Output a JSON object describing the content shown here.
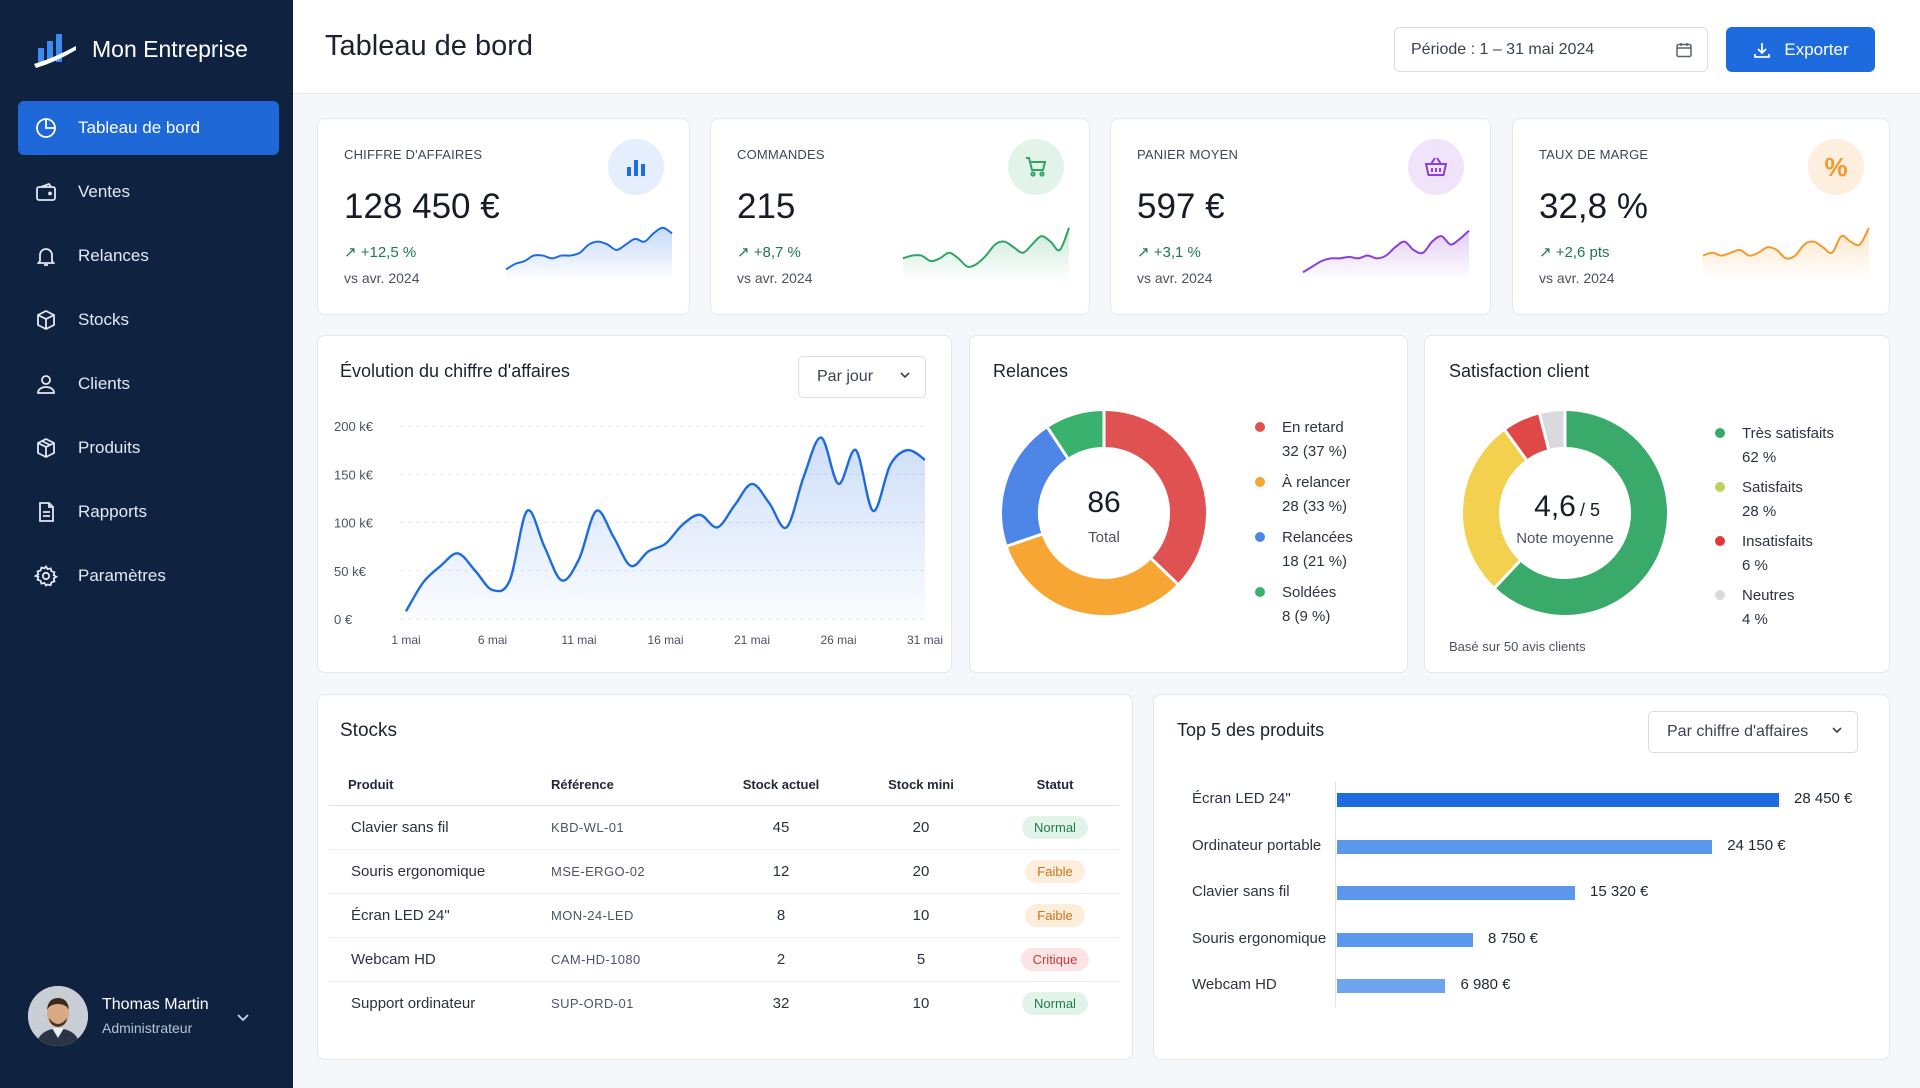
{
  "brand": {
    "name": "Mon Entreprise"
  },
  "nav": [
    {
      "label": "Tableau de bord",
      "icon": "pie-chart-icon",
      "active": true
    },
    {
      "label": "Ventes",
      "icon": "wallet-icon"
    },
    {
      "label": "Relances",
      "icon": "bell-icon"
    },
    {
      "label": "Stocks",
      "icon": "box-icon"
    },
    {
      "label": "Clients",
      "icon": "user-icon"
    },
    {
      "label": "Produits",
      "icon": "package-icon"
    },
    {
      "label": "Rapports",
      "icon": "document-icon"
    },
    {
      "label": "Paramètres",
      "icon": "gear-icon"
    }
  ],
  "user": {
    "name": "Thomas Martin",
    "role": "Administrateur"
  },
  "header": {
    "title": "Tableau de bord",
    "period": "Période : 1 – 31 mai 2024",
    "export_label": "Exporter"
  },
  "kpis": [
    {
      "label": "CHIFFRE D'AFFAIRES",
      "value": "128 450 €",
      "delta": "↗ +12,5 %",
      "vs": "vs avr. 2024",
      "icon": "bar-chart-icon",
      "color": "#1e6be0",
      "bg": "#e4eefc",
      "spark": [
        4,
        8,
        10,
        14,
        14,
        12,
        14,
        14,
        16,
        22,
        24,
        22,
        18,
        22,
        26,
        24,
        30,
        34,
        30
      ]
    },
    {
      "label": "COMMANDES",
      "value": "215",
      "delta": "↗ +8,7 %",
      "vs": "vs avr. 2024",
      "icon": "cart-icon",
      "color": "#2ea565",
      "bg": "#e2f4ea",
      "spark": [
        12,
        14,
        14,
        10,
        12,
        16,
        12,
        6,
        8,
        14,
        22,
        24,
        20,
        16,
        22,
        28,
        24,
        18,
        34
      ]
    },
    {
      "label": "PANIER MOYEN",
      "value": "597 €",
      "delta": "↗ +3,1 %",
      "vs": "vs avr. 2024",
      "icon": "basket-icon",
      "color": "#8d3fd6",
      "bg": "#efe4fa",
      "spark": [
        2,
        6,
        10,
        12,
        12,
        13,
        12,
        14,
        12,
        14,
        20,
        24,
        18,
        16,
        24,
        28,
        22,
        26,
        32
      ]
    },
    {
      "label": "TAUX DE MARGE",
      "value": "32,8 %",
      "delta": "↗ +2,6 pts",
      "vs": "vs avr. 2024",
      "icon": "percent-icon",
      "color": "#f29a2e",
      "bg": "#fdeede",
      "spark": [
        14,
        16,
        14,
        16,
        18,
        14,
        16,
        20,
        18,
        12,
        14,
        22,
        24,
        20,
        16,
        28,
        24,
        22,
        34
      ]
    }
  ],
  "revenue": {
    "title": "Évolution du chiffre d'affaires",
    "granularity": "Par jour"
  },
  "chart_data": [
    {
      "type": "area",
      "title": "Évolution du chiffre d'affaires",
      "x": [
        1,
        2,
        3,
        4,
        5,
        6,
        7,
        8,
        9,
        10,
        11,
        12,
        13,
        14,
        15,
        16,
        17,
        18,
        19,
        20,
        21,
        22,
        23,
        24,
        25,
        26,
        27,
        28,
        29,
        30,
        31
      ],
      "xticks": [
        1,
        6,
        11,
        16,
        21,
        26,
        31
      ],
      "xtick_labels": [
        "1 mai",
        "6 mai",
        "11 mai",
        "16 mai",
        "21 mai",
        "26 mai",
        "31 mai"
      ],
      "y": [
        8,
        38,
        55,
        68,
        50,
        30,
        40,
        112,
        75,
        40,
        62,
        112,
        85,
        55,
        70,
        78,
        98,
        108,
        95,
        118,
        140,
        120,
        95,
        148,
        188,
        140,
        175,
        112,
        160,
        175,
        165
      ],
      "yticks": [
        0,
        50,
        100,
        150,
        200
      ],
      "ytick_labels": [
        "0 €",
        "50 k€",
        "100 k€",
        "150 k€",
        "200 k€"
      ],
      "ylim": [
        0,
        200
      ],
      "color": "#1e6be0"
    },
    {
      "type": "pie",
      "title": "Relances",
      "center_value": "86",
      "center_label": "Total",
      "slices": [
        {
          "name": "En retard",
          "value": 32,
          "pct": "37 %",
          "color": "#e05252"
        },
        {
          "name": "À relancer",
          "value": 28,
          "pct": "33 %",
          "color": "#f7a634"
        },
        {
          "name": "Relancées",
          "value": 18,
          "pct": "21 %",
          "color": "#4e86e8"
        },
        {
          "name": "Soldées",
          "value": 8,
          "pct": "9 %",
          "color": "#38b26d"
        }
      ]
    },
    {
      "type": "pie",
      "title": "Satisfaction client",
      "center_value": "4,6",
      "center_suffix": "/ 5",
      "center_label": "Note moyenne",
      "footnote": "Basé sur 50 avis clients",
      "slices": [
        {
          "name": "Très satisfaits",
          "value": 62,
          "pct": "62 %",
          "color": "#3aaa6a"
        },
        {
          "name": "Satisfaits",
          "value": 28,
          "pct": "28 %",
          "color": "#f3d14e"
        },
        {
          "name": "Insatisfaits",
          "value": 6,
          "pct": "6 %",
          "color": "#e04848"
        },
        {
          "name": "Neutres",
          "value": 4,
          "pct": "4 %",
          "color": "#d8dade"
        }
      ],
      "legend_colors": [
        "#3aaa6a",
        "#b9d45a",
        "#e03838",
        "#d8dade"
      ]
    },
    {
      "type": "bar",
      "title": "Top 5 des produits",
      "categories": [
        "Écran LED 24\"",
        "Ordinateur portable",
        "Clavier sans fil",
        "Souris ergonomique",
        "Webcam HD"
      ],
      "values": [
        28450,
        24150,
        15320,
        8750,
        6980
      ],
      "value_labels": [
        "28 450 €",
        "24 150 €",
        "15 320 €",
        "8 750 €",
        "6 980 €"
      ],
      "colors": [
        "#1e6be0",
        "#5b97ec",
        "#5b97ec",
        "#5b97ec",
        "#6fa4ee"
      ]
    }
  ],
  "relances": {
    "title": "Relances"
  },
  "satisfaction": {
    "title": "Satisfaction client"
  },
  "stocks": {
    "title": "Stocks",
    "columns": [
      "Produit",
      "Référence",
      "Stock actuel",
      "Stock mini",
      "Statut"
    ],
    "rows": [
      {
        "product": "Clavier sans fil",
        "ref": "KBD-WL-01",
        "stock": "45",
        "min": "20",
        "status": "Normal",
        "status_color": "#1d7a4b",
        "status_bg": "#e2f4ea"
      },
      {
        "product": "Souris ergonomique",
        "ref": "MSE-ERGO-02",
        "stock": "12",
        "min": "20",
        "status": "Faible",
        "status_color": "#c8731a",
        "status_bg": "#fdeedc"
      },
      {
        "product": "Écran LED 24\"",
        "ref": "MON-24-LED",
        "stock": "8",
        "min": "10",
        "status": "Faible",
        "status_color": "#c8731a",
        "status_bg": "#fdeedc"
      },
      {
        "product": "Webcam HD",
        "ref": "CAM-HD-1080",
        "stock": "2",
        "min": "5",
        "status": "Critique",
        "status_color": "#c83a3a",
        "status_bg": "#fce4e4"
      },
      {
        "product": "Support ordinateur",
        "ref": "SUP-ORD-01",
        "stock": "32",
        "min": "10",
        "status": "Normal",
        "status_color": "#1d7a4b",
        "status_bg": "#e2f4ea"
      }
    ]
  },
  "top_products": {
    "title": "Top 5 des produits",
    "sort": "Par chiffre d'affaires"
  }
}
